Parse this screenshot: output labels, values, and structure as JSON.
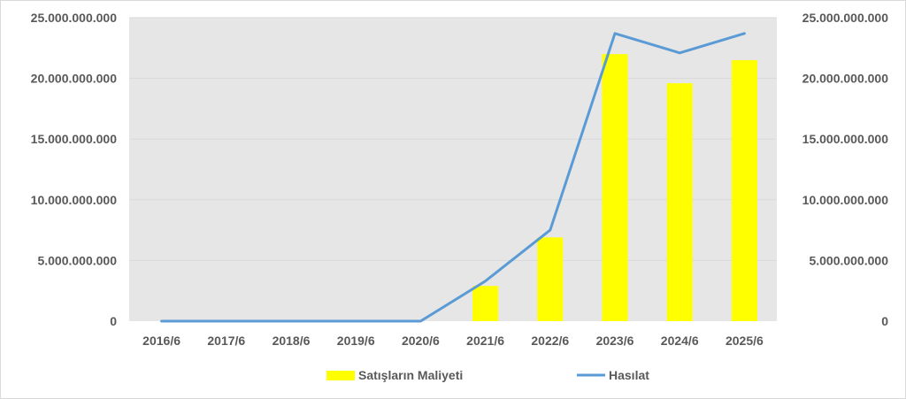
{
  "chart_data": {
    "type": "bar",
    "categories": [
      "2016/6",
      "2017/6",
      "2018/6",
      "2019/6",
      "2020/6",
      "2021/6",
      "2022/6",
      "2023/6",
      "2024/6",
      "2025/6"
    ],
    "series": [
      {
        "name": "Satışların Maliyeti",
        "type": "bar",
        "axis": "left",
        "color": "#FFFF00",
        "values": [
          0,
          0,
          0,
          0,
          0,
          2900000000,
          6900000000,
          22000000000,
          19600000000,
          21500000000
        ]
      },
      {
        "name": "Hasılat",
        "type": "line",
        "axis": "right",
        "color": "#5B9BD5",
        "values": [
          0,
          0,
          0,
          0,
          0,
          3300000000,
          7500000000,
          23700000000,
          22100000000,
          23700000000
        ]
      }
    ],
    "ylim": [
      0,
      25000000000
    ],
    "y_ticks": [
      "0",
      "5.000.000.000",
      "10.000.000.000",
      "15.000.000.000",
      "20.000.000.000",
      "25.000.000.000"
    ],
    "y2_ticks": [
      "0",
      "5.000.000.000",
      "10.000.000.000",
      "15.000.000.000",
      "20.000.000.000",
      "25.000.000.000"
    ],
    "title": "",
    "xlabel": "",
    "ylabel": "",
    "grid": true,
    "legend_position": "bottom",
    "plot_background": "#E7E6E6"
  }
}
